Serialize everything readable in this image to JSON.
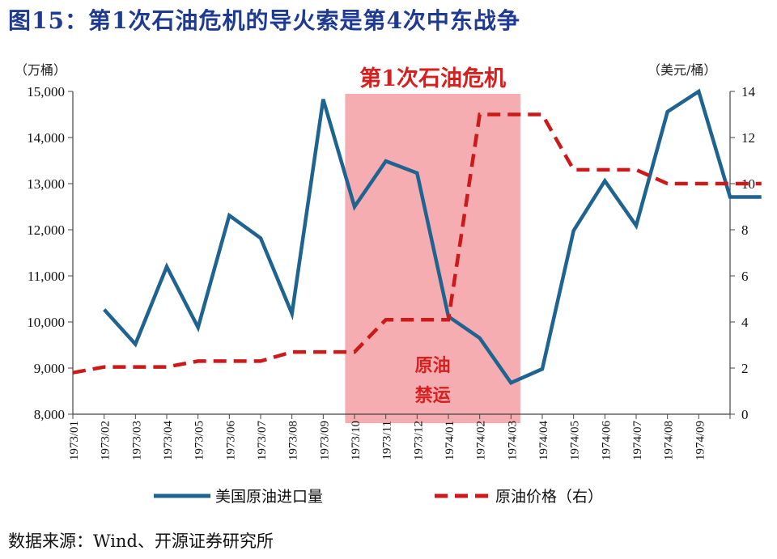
{
  "figure_title": "图15：第1次石油危机的导火索是第4次中东战争",
  "source": "数据来源：Wind、开源证券研究所",
  "colors": {
    "title": "#1f3a93",
    "imports_line": "#1f6391",
    "price_line": "#cc1a1a",
    "shade": "#f4a9ae",
    "annotation": "#d91e1e"
  },
  "chart_data": {
    "type": "line",
    "categories": [
      "1973/01",
      "1973/02",
      "1973/03",
      "1973/04",
      "1973/05",
      "1973/06",
      "1973/07",
      "1973/08",
      "1973/09",
      "1973/10",
      "1973/11",
      "1973/12",
      "1974/01",
      "1974/02",
      "1974/03",
      "1974/04",
      "1974/05",
      "1974/06",
      "1974/07",
      "1974/08",
      "1974/09"
    ],
    "y_left": {
      "unit_label": "（万桶）",
      "lim": [
        8000,
        15000
      ],
      "ticks": [
        8000,
        9000,
        10000,
        11000,
        12000,
        13000,
        14000,
        15000
      ],
      "tick_labels": [
        "8,000",
        "9,000",
        "10,000",
        "11,000",
        "12,000",
        "13,000",
        "14,000",
        "15,000"
      ]
    },
    "y_right": {
      "unit_label": "（美元/桶）",
      "lim": [
        0,
        14
      ],
      "ticks": [
        0,
        2,
        4,
        6,
        8,
        10,
        12,
        14
      ],
      "tick_labels": [
        "0",
        "2",
        "4",
        "6",
        "8",
        "10",
        "12",
        "14"
      ]
    },
    "series": [
      {
        "name": "美国原油进口量",
        "axis": "left",
        "style": "solid",
        "x": [
          1.0,
          2.0,
          3.0,
          4.0,
          5.0,
          6.0,
          7.0,
          8.0,
          9.0,
          10.0,
          11.0,
          12.0,
          13.0,
          14.0,
          15.0,
          16.0,
          17.0,
          18.0,
          19.0,
          20.0,
          21.0,
          22.0
        ],
        "values": [
          10270,
          9520,
          11200,
          9880,
          12310,
          11820,
          10180,
          14830,
          12500,
          13490,
          13230,
          10120,
          9650,
          8680,
          8980,
          11980,
          13060,
          12090,
          14560,
          15000,
          12710,
          12710
        ]
      },
      {
        "name": "原油价格（右）",
        "axis": "right",
        "style": "dashed",
        "x": [
          0.0,
          1.0,
          2.0,
          3.0,
          4.0,
          5.0,
          6.0,
          7.0,
          8.0,
          9.0,
          10.0,
          11.0,
          12.0,
          13.0,
          14.0,
          15.0,
          16.0,
          17.0,
          18.0,
          19.0,
          20.0,
          21.0,
          22.0
        ],
        "values": [
          1.8,
          2.05,
          2.05,
          2.05,
          2.3,
          2.3,
          2.3,
          2.7,
          2.7,
          2.7,
          4.1,
          4.1,
          4.1,
          13.0,
          13.0,
          13.0,
          10.6,
          10.6,
          10.6,
          10.0,
          10.0,
          10.0,
          10.0
        ]
      }
    ],
    "shaded_region": {
      "from": "1973/10",
      "to": "1974/03",
      "label": "第1次石油危机"
    },
    "annotation": {
      "text_line1": "原油",
      "text_line2": "禁运"
    },
    "legend": {
      "placement": "bottom",
      "items": [
        "美国原油进口量",
        "原油价格（右）"
      ]
    },
    "grid": false
  }
}
